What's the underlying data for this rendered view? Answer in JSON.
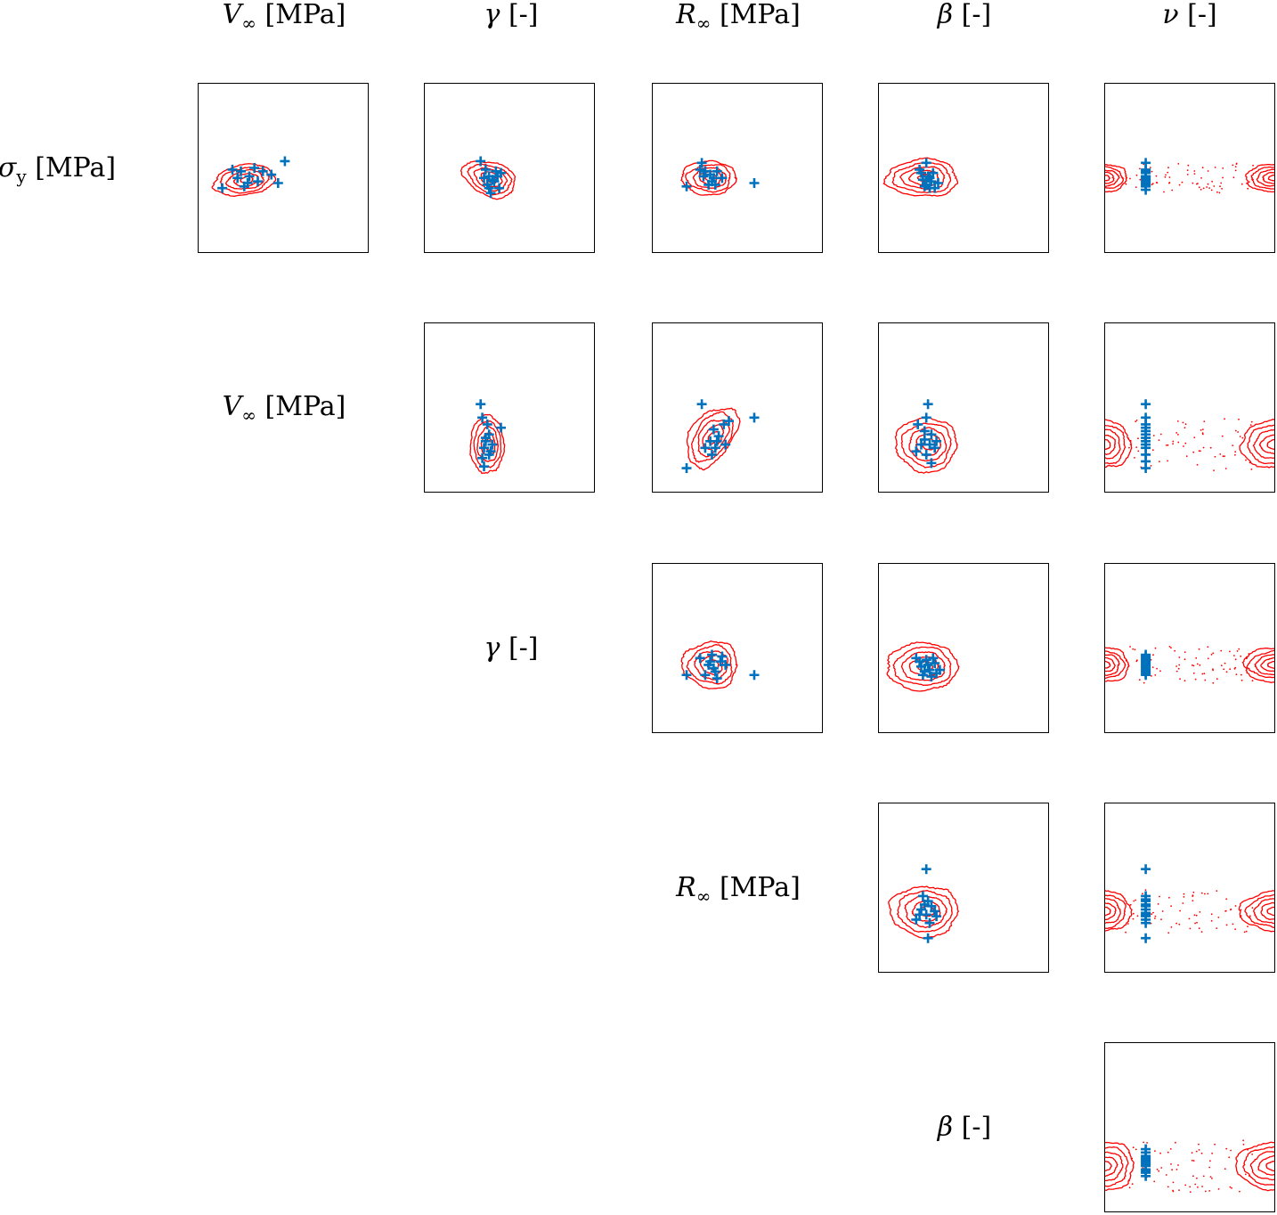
{
  "chart_data": {
    "type": "scatter",
    "title": "",
    "variables": [
      {
        "symbol": "σ",
        "sub": "y",
        "unit": "[MPa]"
      },
      {
        "symbol": "V",
        "sub": "∞",
        "unit": "[MPa]"
      },
      {
        "symbol": "γ",
        "sub": "",
        "unit": "[-]"
      },
      {
        "symbol": "R",
        "sub": "∞",
        "unit": "[MPa]"
      },
      {
        "symbol": "β",
        "sub": "",
        "unit": "[-]"
      },
      {
        "symbol": "ν",
        "sub": "",
        "unit": "[-]"
      }
    ],
    "column_variables": [
      1,
      2,
      3,
      4,
      5
    ],
    "row_variables": [
      0,
      1,
      2,
      3,
      4
    ],
    "series": [
      {
        "name": "",
        "kind": "contour",
        "color": "#ff0000"
      },
      {
        "name": "",
        "kind": "samples",
        "marker": "+",
        "color": "#0072bd"
      }
    ],
    "axes_ticks_shown": false,
    "grid": false,
    "panels": [
      {
        "row": 0,
        "col": 0,
        "contour": {
          "cx": 0.29,
          "cy": 0.57,
          "rx": 0.18,
          "ry": 0.09,
          "tilt": -8,
          "levels": 5
        },
        "samples": [
          [
            0.14,
            0.62
          ],
          [
            0.2,
            0.51
          ],
          [
            0.23,
            0.56
          ],
          [
            0.25,
            0.52
          ],
          [
            0.27,
            0.61
          ],
          [
            0.3,
            0.55
          ],
          [
            0.33,
            0.5
          ],
          [
            0.35,
            0.58
          ],
          [
            0.29,
            0.59
          ],
          [
            0.38,
            0.52
          ],
          [
            0.43,
            0.54
          ],
          [
            0.47,
            0.59
          ],
          [
            0.51,
            0.46
          ]
        ]
      },
      {
        "row": 0,
        "col": 1,
        "contour": {
          "cx": 0.4,
          "cy": 0.57,
          "rx": 0.16,
          "ry": 0.1,
          "tilt": 20,
          "levels": 5
        },
        "samples": [
          [
            0.33,
            0.46
          ],
          [
            0.36,
            0.51
          ],
          [
            0.38,
            0.55
          ],
          [
            0.4,
            0.57
          ],
          [
            0.37,
            0.6
          ],
          [
            0.42,
            0.52
          ],
          [
            0.44,
            0.62
          ],
          [
            0.39,
            0.65
          ],
          [
            0.45,
            0.53
          ],
          [
            0.35,
            0.56
          ],
          [
            0.41,
            0.58
          ],
          [
            0.43,
            0.55
          ],
          [
            0.38,
            0.62
          ]
        ]
      },
      {
        "row": 0,
        "col": 2,
        "contour": {
          "cx": 0.35,
          "cy": 0.56,
          "rx": 0.16,
          "ry": 0.1,
          "tilt": 0,
          "levels": 5
        },
        "samples": [
          [
            0.29,
            0.47
          ],
          [
            0.31,
            0.52
          ],
          [
            0.34,
            0.54
          ],
          [
            0.36,
            0.56
          ],
          [
            0.38,
            0.52
          ],
          [
            0.41,
            0.56
          ],
          [
            0.33,
            0.6
          ],
          [
            0.37,
            0.6
          ],
          [
            0.2,
            0.61
          ],
          [
            0.6,
            0.59
          ],
          [
            0.3,
            0.55
          ],
          [
            0.35,
            0.58
          ],
          [
            0.28,
            0.51
          ]
        ]
      },
      {
        "row": 0,
        "col": 3,
        "contour": {
          "cx": 0.28,
          "cy": 0.56,
          "rx": 0.21,
          "ry": 0.11,
          "tilt": 0,
          "levels": 5
        },
        "samples": [
          [
            0.28,
            0.47
          ],
          [
            0.25,
            0.53
          ],
          [
            0.29,
            0.55
          ],
          [
            0.31,
            0.58
          ],
          [
            0.27,
            0.61
          ],
          [
            0.33,
            0.62
          ],
          [
            0.35,
            0.59
          ],
          [
            0.24,
            0.51
          ],
          [
            0.3,
            0.56
          ],
          [
            0.26,
            0.57
          ],
          [
            0.32,
            0.53
          ],
          [
            0.3,
            0.62
          ],
          [
            0.28,
            0.6
          ]
        ]
      },
      {
        "row": 0,
        "col": 4,
        "contour": {
          "cx": 0.0,
          "cy": 0.56,
          "rx": 0.12,
          "ry": 0.08,
          "tilt": 0,
          "levels": 5,
          "bimodal": true,
          "cx2": 1.0
        },
        "samples": [
          [
            0.24,
            0.47
          ],
          [
            0.24,
            0.51
          ],
          [
            0.24,
            0.53
          ],
          [
            0.24,
            0.55
          ],
          [
            0.24,
            0.57
          ],
          [
            0.24,
            0.59
          ],
          [
            0.24,
            0.61
          ],
          [
            0.24,
            0.63
          ],
          [
            0.24,
            0.55
          ],
          [
            0.24,
            0.58
          ],
          [
            0.24,
            0.52
          ],
          [
            0.24,
            0.6
          ],
          [
            0.24,
            0.56
          ]
        ]
      },
      {
        "row": 1,
        "col": 1,
        "contour": {
          "cx": 0.38,
          "cy": 0.72,
          "rx": 0.1,
          "ry": 0.17,
          "tilt": 0,
          "levels": 5
        },
        "samples": [
          [
            0.33,
            0.48
          ],
          [
            0.34,
            0.56
          ],
          [
            0.37,
            0.6
          ],
          [
            0.45,
            0.62
          ],
          [
            0.38,
            0.66
          ],
          [
            0.36,
            0.7
          ],
          [
            0.35,
            0.74
          ],
          [
            0.38,
            0.78
          ],
          [
            0.34,
            0.8
          ],
          [
            0.35,
            0.85
          ],
          [
            0.39,
            0.76
          ],
          [
            0.4,
            0.72
          ],
          [
            0.36,
            0.68
          ]
        ]
      },
      {
        "row": 1,
        "col": 2,
        "contour": {
          "cx": 0.36,
          "cy": 0.68,
          "rx": 0.12,
          "ry": 0.2,
          "tilt": 35,
          "levels": 5
        },
        "samples": [
          [
            0.29,
            0.48
          ],
          [
            0.6,
            0.56
          ],
          [
            0.42,
            0.6
          ],
          [
            0.36,
            0.63
          ],
          [
            0.39,
            0.67
          ],
          [
            0.34,
            0.7
          ],
          [
            0.37,
            0.74
          ],
          [
            0.35,
            0.78
          ],
          [
            0.2,
            0.86
          ],
          [
            0.43,
            0.72
          ],
          [
            0.31,
            0.74
          ],
          [
            0.38,
            0.7
          ],
          [
            0.45,
            0.58
          ]
        ]
      },
      {
        "row": 1,
        "col": 3,
        "contour": {
          "cx": 0.3,
          "cy": 0.72,
          "rx": 0.18,
          "ry": 0.16,
          "tilt": 0,
          "levels": 5
        },
        "samples": [
          [
            0.29,
            0.48
          ],
          [
            0.28,
            0.56
          ],
          [
            0.23,
            0.6
          ],
          [
            0.27,
            0.64
          ],
          [
            0.31,
            0.66
          ],
          [
            0.34,
            0.7
          ],
          [
            0.25,
            0.72
          ],
          [
            0.22,
            0.76
          ],
          [
            0.28,
            0.78
          ],
          [
            0.31,
            0.83
          ],
          [
            0.33,
            0.74
          ],
          [
            0.27,
            0.69
          ],
          [
            0.3,
            0.72
          ]
        ]
      },
      {
        "row": 1,
        "col": 4,
        "contour": {
          "cx": 0.0,
          "cy": 0.72,
          "rx": 0.14,
          "ry": 0.14,
          "tilt": 0,
          "levels": 5,
          "bimodal": true,
          "cx2": 1.0
        },
        "samples": [
          [
            0.24,
            0.48
          ],
          [
            0.24,
            0.56
          ],
          [
            0.24,
            0.6
          ],
          [
            0.24,
            0.62
          ],
          [
            0.24,
            0.66
          ],
          [
            0.24,
            0.7
          ],
          [
            0.24,
            0.74
          ],
          [
            0.24,
            0.78
          ],
          [
            0.24,
            0.82
          ],
          [
            0.24,
            0.86
          ],
          [
            0.24,
            0.72
          ],
          [
            0.24,
            0.68
          ],
          [
            0.24,
            0.64
          ]
        ]
      },
      {
        "row": 2,
        "col": 2,
        "contour": {
          "cx": 0.36,
          "cy": 0.6,
          "rx": 0.16,
          "ry": 0.14,
          "tilt": 0,
          "levels": 5
        },
        "samples": [
          [
            0.2,
            0.66
          ],
          [
            0.28,
            0.56
          ],
          [
            0.33,
            0.6
          ],
          [
            0.35,
            0.54
          ],
          [
            0.37,
            0.64
          ],
          [
            0.4,
            0.58
          ],
          [
            0.43,
            0.6
          ],
          [
            0.31,
            0.66
          ],
          [
            0.38,
            0.68
          ],
          [
            0.6,
            0.66
          ],
          [
            0.34,
            0.58
          ],
          [
            0.36,
            0.62
          ],
          [
            0.41,
            0.55
          ]
        ]
      },
      {
        "row": 2,
        "col": 3,
        "contour": {
          "cx": 0.28,
          "cy": 0.61,
          "rx": 0.21,
          "ry": 0.14,
          "tilt": 0,
          "levels": 5
        },
        "samples": [
          [
            0.22,
            0.56
          ],
          [
            0.25,
            0.61
          ],
          [
            0.28,
            0.57
          ],
          [
            0.3,
            0.63
          ],
          [
            0.33,
            0.59
          ],
          [
            0.26,
            0.66
          ],
          [
            0.31,
            0.67
          ],
          [
            0.36,
            0.63
          ],
          [
            0.24,
            0.58
          ],
          [
            0.29,
            0.6
          ],
          [
            0.27,
            0.64
          ],
          [
            0.32,
            0.56
          ],
          [
            0.34,
            0.65
          ]
        ]
      },
      {
        "row": 2,
        "col": 4,
        "contour": {
          "cx": 0.0,
          "cy": 0.6,
          "rx": 0.13,
          "ry": 0.1,
          "tilt": 0,
          "levels": 5,
          "bimodal": true,
          "cx2": 1.0
        },
        "samples": [
          [
            0.24,
            0.54
          ],
          [
            0.24,
            0.56
          ],
          [
            0.24,
            0.58
          ],
          [
            0.24,
            0.6
          ],
          [
            0.24,
            0.62
          ],
          [
            0.24,
            0.64
          ],
          [
            0.24,
            0.66
          ],
          [
            0.24,
            0.57
          ],
          [
            0.24,
            0.59
          ],
          [
            0.24,
            0.61
          ],
          [
            0.24,
            0.63
          ],
          [
            0.24,
            0.55
          ],
          [
            0.24,
            0.65
          ]
        ]
      },
      {
        "row": 3,
        "col": 3,
        "contour": {
          "cx": 0.29,
          "cy": 0.64,
          "rx": 0.2,
          "ry": 0.15,
          "tilt": 0,
          "levels": 5
        },
        "samples": [
          [
            0.28,
            0.39
          ],
          [
            0.26,
            0.55
          ],
          [
            0.29,
            0.58
          ],
          [
            0.31,
            0.61
          ],
          [
            0.25,
            0.63
          ],
          [
            0.33,
            0.64
          ],
          [
            0.28,
            0.66
          ],
          [
            0.22,
            0.69
          ],
          [
            0.3,
            0.71
          ],
          [
            0.34,
            0.67
          ],
          [
            0.27,
            0.6
          ],
          [
            0.24,
            0.66
          ],
          [
            0.29,
            0.8
          ]
        ]
      },
      {
        "row": 3,
        "col": 4,
        "contour": {
          "cx": 0.0,
          "cy": 0.64,
          "rx": 0.14,
          "ry": 0.12,
          "tilt": 0,
          "levels": 5,
          "bimodal": true,
          "cx2": 1.0
        },
        "samples": [
          [
            0.24,
            0.39
          ],
          [
            0.24,
            0.55
          ],
          [
            0.24,
            0.58
          ],
          [
            0.24,
            0.61
          ],
          [
            0.24,
            0.63
          ],
          [
            0.24,
            0.65
          ],
          [
            0.24,
            0.67
          ],
          [
            0.24,
            0.69
          ],
          [
            0.24,
            0.71
          ],
          [
            0.24,
            0.8
          ],
          [
            0.24,
            0.6
          ],
          [
            0.24,
            0.66
          ],
          [
            0.24,
            0.57
          ]
        ]
      },
      {
        "row": 4,
        "col": 4,
        "contour": {
          "cx": 0.0,
          "cy": 0.73,
          "rx": 0.16,
          "ry": 0.14,
          "tilt": 0,
          "levels": 5,
          "bimodal": true,
          "cx2": 1.0
        },
        "samples": [
          [
            0.24,
            0.63
          ],
          [
            0.24,
            0.65
          ],
          [
            0.24,
            0.67
          ],
          [
            0.24,
            0.69
          ],
          [
            0.24,
            0.71
          ],
          [
            0.24,
            0.73
          ],
          [
            0.24,
            0.75
          ],
          [
            0.24,
            0.77
          ],
          [
            0.24,
            0.79
          ],
          [
            0.24,
            0.68
          ],
          [
            0.24,
            0.72
          ],
          [
            0.24,
            0.76
          ],
          [
            0.24,
            0.7
          ]
        ]
      }
    ]
  }
}
